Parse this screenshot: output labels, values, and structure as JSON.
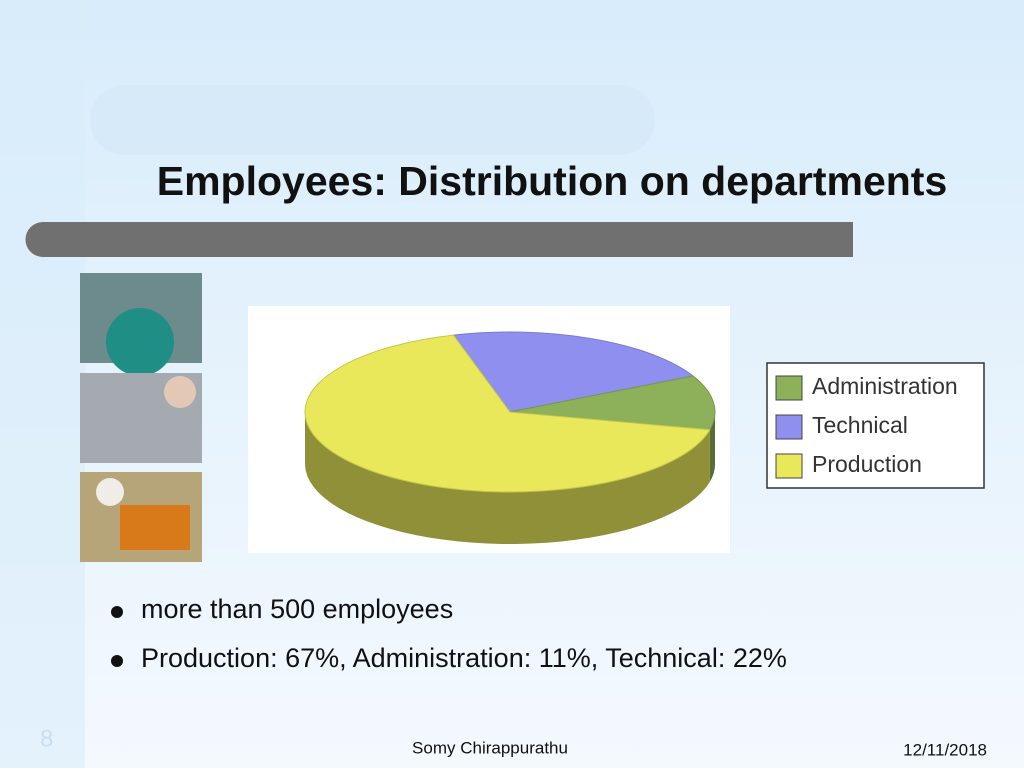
{
  "chart_data": {
    "type": "pie",
    "title": "Employees: Distribution on departments",
    "categories": [
      "Administration",
      "Technical",
      "Production"
    ],
    "values": [
      11,
      22,
      67
    ],
    "colors": [
      "#8db05a",
      "#8f8fef",
      "#e8e85a"
    ]
  },
  "slide": {
    "bullets": [
      "more than 500 employees",
      "Production: 67%, Administration: 11%, Technical: 22%"
    ],
    "footer": "Somy Chirappurathu",
    "date": "12/11/2018",
    "slide_number": "8"
  }
}
